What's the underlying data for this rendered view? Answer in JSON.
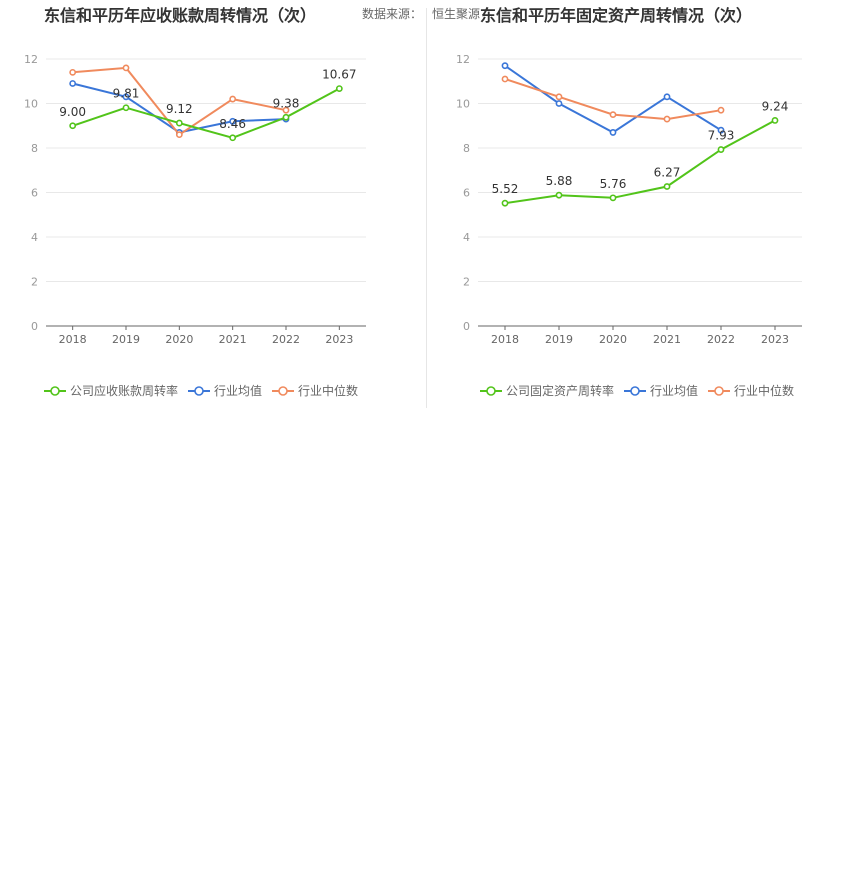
{
  "source_label": "数据来源：",
  "source_value": "恒生聚源",
  "chart_data": [
    {
      "type": "line",
      "title": "东信和平历年应收账款周转情况（次）",
      "x": [
        "2018",
        "2019",
        "2020",
        "2021",
        "2022",
        "2023"
      ],
      "ylim": [
        0,
        12
      ],
      "yticks": [
        0,
        2,
        4,
        6,
        8,
        10,
        12
      ],
      "grid": true,
      "legend_position": "bottom",
      "series": [
        {
          "name": "公司应收账款周转率",
          "color": "#52c41a",
          "values": [
            9.0,
            9.81,
            9.12,
            8.46,
            9.38,
            10.67
          ],
          "labels": [
            "9.00",
            "9.81",
            "9.12",
            "8.46",
            "9.38",
            "10.67"
          ]
        },
        {
          "name": "行业均值",
          "color": "#3a76d8",
          "values": [
            10.9,
            10.3,
            8.7,
            9.2,
            9.3,
            null
          ]
        },
        {
          "name": "行业中位数",
          "color": "#f08a5d",
          "values": [
            11.4,
            11.6,
            8.6,
            10.2,
            9.7,
            null
          ]
        }
      ]
    },
    {
      "type": "line",
      "title": "东信和平历年固定资产周转情况（次）",
      "x": [
        "2018",
        "2019",
        "2020",
        "2021",
        "2022",
        "2023"
      ],
      "ylim": [
        0,
        12
      ],
      "yticks": [
        0,
        2,
        4,
        6,
        8,
        10,
        12
      ],
      "grid": true,
      "legend_position": "bottom",
      "series": [
        {
          "name": "公司固定资产周转率",
          "color": "#52c41a",
          "values": [
            5.52,
            5.88,
            5.76,
            6.27,
            7.93,
            9.24
          ],
          "labels": [
            "5.52",
            "5.88",
            "5.76",
            "6.27",
            "7.93",
            "9.24"
          ]
        },
        {
          "name": "行业均值",
          "color": "#3a76d8",
          "values": [
            11.7,
            10.0,
            8.7,
            10.3,
            8.8,
            null
          ]
        },
        {
          "name": "行业中位数",
          "color": "#f08a5d",
          "values": [
            11.1,
            10.3,
            9.5,
            9.3,
            9.7,
            null
          ]
        }
      ]
    }
  ]
}
